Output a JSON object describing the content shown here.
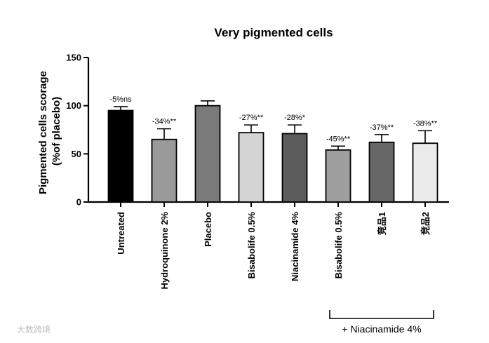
{
  "chart_data": {
    "type": "bar",
    "title": "Very pigmented cells",
    "ylabel": "Pigmented cells scorage (%of placebo)",
    "ylabel_lines": [
      "Pigmented cells scorage",
      "(%of placebo)"
    ],
    "xlabel": "",
    "ylim": [
      0,
      150
    ],
    "yticks": [
      0,
      50,
      100,
      150
    ],
    "grid": false,
    "legend": "none",
    "categories": [
      "Untreated",
      "Hydroquinone 2%",
      "Placebo",
      "Bisabolife 0.5%",
      "Niacinamide 4%",
      "Bisabolife 0.5%",
      "竞品1",
      "竞品2"
    ],
    "values": [
      95,
      65,
      100,
      72,
      71,
      54,
      62,
      61
    ],
    "errors": [
      4,
      11,
      5,
      8,
      9,
      4,
      8,
      13
    ],
    "annotations": [
      "-5%ns",
      "-34%**",
      "",
      "-27%**",
      "-28%*",
      "-45%**",
      "-37%**",
      "-38%**"
    ],
    "colors": [
      "#000000",
      "#9a9a9a",
      "#7a7a7a",
      "#d4d4d4",
      "#5c5c5c",
      "#9e9e9e",
      "#676767",
      "#ebebeb"
    ],
    "group_bracket": {
      "label": "+ Niacinamide 4%",
      "from_index": 5,
      "to_index": 7
    }
  },
  "watermark": "大数跨境"
}
